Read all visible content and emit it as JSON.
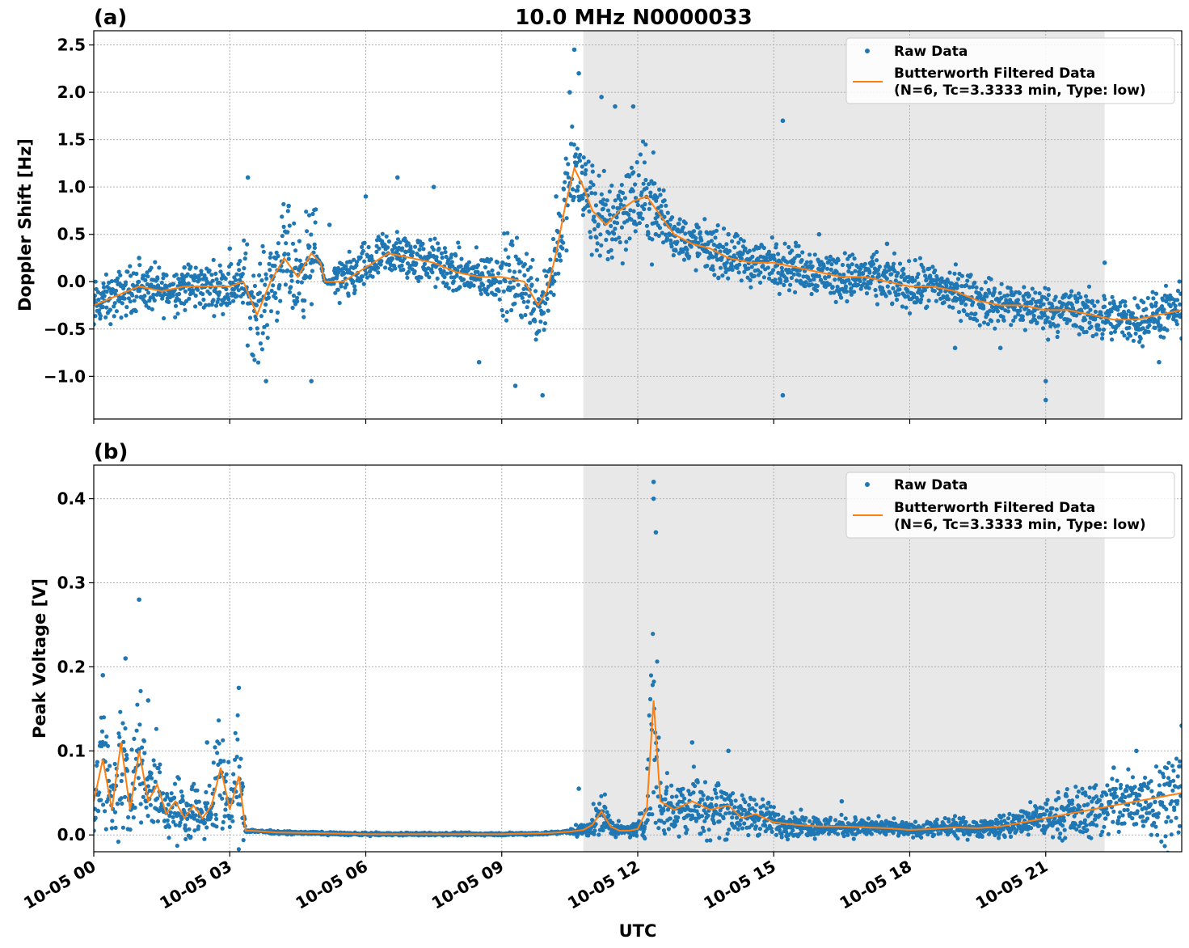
{
  "figure": {
    "title": "10.0 MHz N0000033",
    "xlabel": "UTC",
    "x_ticks": [
      "10-05 00",
      "10-05 03",
      "10-05 06",
      "10-05 09",
      "10-05 12",
      "10-05 15",
      "10-05 18",
      "10-05 21"
    ],
    "colors": {
      "raw": "#1f77b4",
      "filtered": "#ff7f0e",
      "shade": "#e8e8e8",
      "grid": "#b0b0b0"
    }
  },
  "chart_data": [
    {
      "type": "scatter",
      "panel_label": "(a)",
      "ylabel": "Doppler Shift [Hz]",
      "xlim_hours": [
        0,
        24
      ],
      "ylim": [
        -1.45,
        2.65
      ],
      "y_ticks": [
        2.5,
        2.0,
        1.5,
        1.0,
        0.5,
        0.0,
        -0.5,
        -1.0
      ],
      "y_tick_labels": [
        "2.5",
        "2.0",
        "1.5",
        "1.0",
        "0.5",
        "0.0",
        "−0.5",
        "−1.0"
      ],
      "shaded_span_hours": [
        10.8,
        22.3
      ],
      "legend": {
        "placement": "upper-right",
        "entries": [
          "Raw Data",
          "Butterworth Filtered Data",
          "(N=6, Tc=3.3333 min, Type: low)"
        ]
      },
      "series": [
        {
          "name": "Butterworth Filtered Data",
          "kind": "line",
          "x_hours": [
            0,
            0.5,
            1,
            1.5,
            2,
            2.5,
            3,
            3.3,
            3.6,
            3.9,
            4.2,
            4.5,
            4.8,
            5.0,
            5.1,
            5.5,
            6,
            6.5,
            7,
            7.5,
            8,
            8.5,
            9,
            9.5,
            9.8,
            10,
            10.2,
            10.4,
            10.6,
            10.8,
            11,
            11.3,
            11.6,
            11.9,
            12.2,
            12.5,
            12.8,
            13.2,
            13.6,
            14,
            14.5,
            15,
            15.5,
            16,
            16.5,
            17,
            17.5,
            18,
            18.5,
            19,
            19.5,
            20,
            20.5,
            21,
            21.5,
            22,
            22.5,
            23,
            23.5,
            24
          ],
          "y": [
            -0.25,
            -0.15,
            -0.05,
            -0.1,
            -0.05,
            -0.05,
            -0.05,
            0.0,
            -0.35,
            0.0,
            0.25,
            0.05,
            0.3,
            0.2,
            0.0,
            0.0,
            0.15,
            0.3,
            0.25,
            0.2,
            0.1,
            0.05,
            0.05,
            0.0,
            -0.25,
            -0.1,
            0.3,
            0.8,
            1.2,
            1.0,
            0.75,
            0.6,
            0.75,
            0.85,
            0.9,
            0.7,
            0.5,
            0.4,
            0.35,
            0.25,
            0.2,
            0.2,
            0.15,
            0.1,
            0.05,
            0.05,
            0.0,
            -0.05,
            -0.05,
            -0.1,
            -0.2,
            -0.25,
            -0.25,
            -0.3,
            -0.3,
            -0.35,
            -0.4,
            -0.4,
            -0.35,
            -0.3
          ]
        },
        {
          "name": "Raw Data",
          "kind": "points",
          "x_hours": [
            0,
            1,
            2,
            3,
            3.4,
            3.8,
            4.3,
            4.8,
            5.2,
            6,
            6.7,
            7.5,
            8.5,
            9.3,
            9.9,
            10.2,
            10.5,
            10.6,
            10.7,
            11.2,
            11.5,
            11.9,
            12.4,
            13.3,
            14,
            15.2,
            15.2,
            16,
            17.5,
            19,
            20,
            21,
            21,
            22.3,
            23.5,
            24
          ],
          "y": [
            -0.45,
            0.25,
            0.15,
            0.35,
            1.1,
            -1.05,
            0.8,
            -1.05,
            0.6,
            0.9,
            1.1,
            1.0,
            -0.85,
            -1.1,
            -1.2,
            0.9,
            2.0,
            2.45,
            2.2,
            1.95,
            1.85,
            1.85,
            0.5,
            0.6,
            0.5,
            1.7,
            -1.2,
            0.5,
            0.4,
            -0.7,
            -0.7,
            -1.05,
            -1.25,
            0.2,
            -0.85,
            -0.6
          ]
        }
      ]
    },
    {
      "type": "scatter",
      "panel_label": "(b)",
      "ylabel": "Peak Voltage [V]",
      "xlim_hours": [
        0,
        24
      ],
      "ylim": [
        -0.02,
        0.44
      ],
      "y_ticks": [
        0.0,
        0.1,
        0.2,
        0.3,
        0.4
      ],
      "y_tick_labels": [
        "0.0",
        "0.1",
        "0.2",
        "0.3",
        "0.4"
      ],
      "shaded_span_hours": [
        10.8,
        22.3
      ],
      "legend": {
        "placement": "upper-right",
        "entries": [
          "Raw Data",
          "Butterworth Filtered Data",
          "(N=6, Tc=3.3333 min, Type: low)"
        ]
      },
      "series": [
        {
          "name": "Butterworth Filtered Data",
          "kind": "line",
          "x_hours": [
            0,
            0.2,
            0.4,
            0.6,
            0.8,
            1.0,
            1.2,
            1.4,
            1.6,
            1.8,
            2.0,
            2.2,
            2.4,
            2.6,
            2.8,
            3.0,
            3.2,
            3.35,
            3.5,
            4,
            5,
            6,
            7,
            8,
            9,
            10,
            10.5,
            10.8,
            11.0,
            11.2,
            11.4,
            11.6,
            11.8,
            12.0,
            12.2,
            12.35,
            12.5,
            12.8,
            13.2,
            13.6,
            14,
            14.3,
            14.6,
            15,
            15.5,
            16,
            16.5,
            17,
            17.5,
            18,
            18.5,
            19,
            19.5,
            20,
            20.5,
            21,
            21.5,
            22,
            22.5,
            23,
            23.5,
            24
          ],
          "y": [
            0.04,
            0.09,
            0.03,
            0.11,
            0.03,
            0.1,
            0.04,
            0.06,
            0.025,
            0.04,
            0.02,
            0.035,
            0.02,
            0.035,
            0.08,
            0.03,
            0.07,
            0.005,
            0.005,
            0.003,
            0.002,
            0.001,
            0.001,
            0.001,
            0.001,
            0.002,
            0.004,
            0.006,
            0.012,
            0.028,
            0.01,
            0.005,
            0.005,
            0.007,
            0.03,
            0.16,
            0.04,
            0.03,
            0.04,
            0.03,
            0.035,
            0.02,
            0.025,
            0.015,
            0.012,
            0.01,
            0.01,
            0.009,
            0.008,
            0.006,
            0.007,
            0.009,
            0.008,
            0.01,
            0.015,
            0.02,
            0.025,
            0.03,
            0.035,
            0.04,
            0.045,
            0.05
          ]
        },
        {
          "name": "Raw Data",
          "kind": "points",
          "x_hours": [
            0.2,
            0.7,
            1.0,
            1.2,
            2.5,
            3.2,
            10.7,
            12.35,
            12.35,
            12.4,
            13.2,
            14.0,
            16.5,
            22.5,
            23,
            24
          ],
          "y": [
            0.19,
            0.21,
            0.28,
            0.16,
            0.11,
            0.175,
            0.055,
            0.42,
            0.4,
            0.36,
            0.11,
            0.1,
            0.04,
            0.08,
            0.1,
            0.13
          ]
        }
      ]
    }
  ]
}
